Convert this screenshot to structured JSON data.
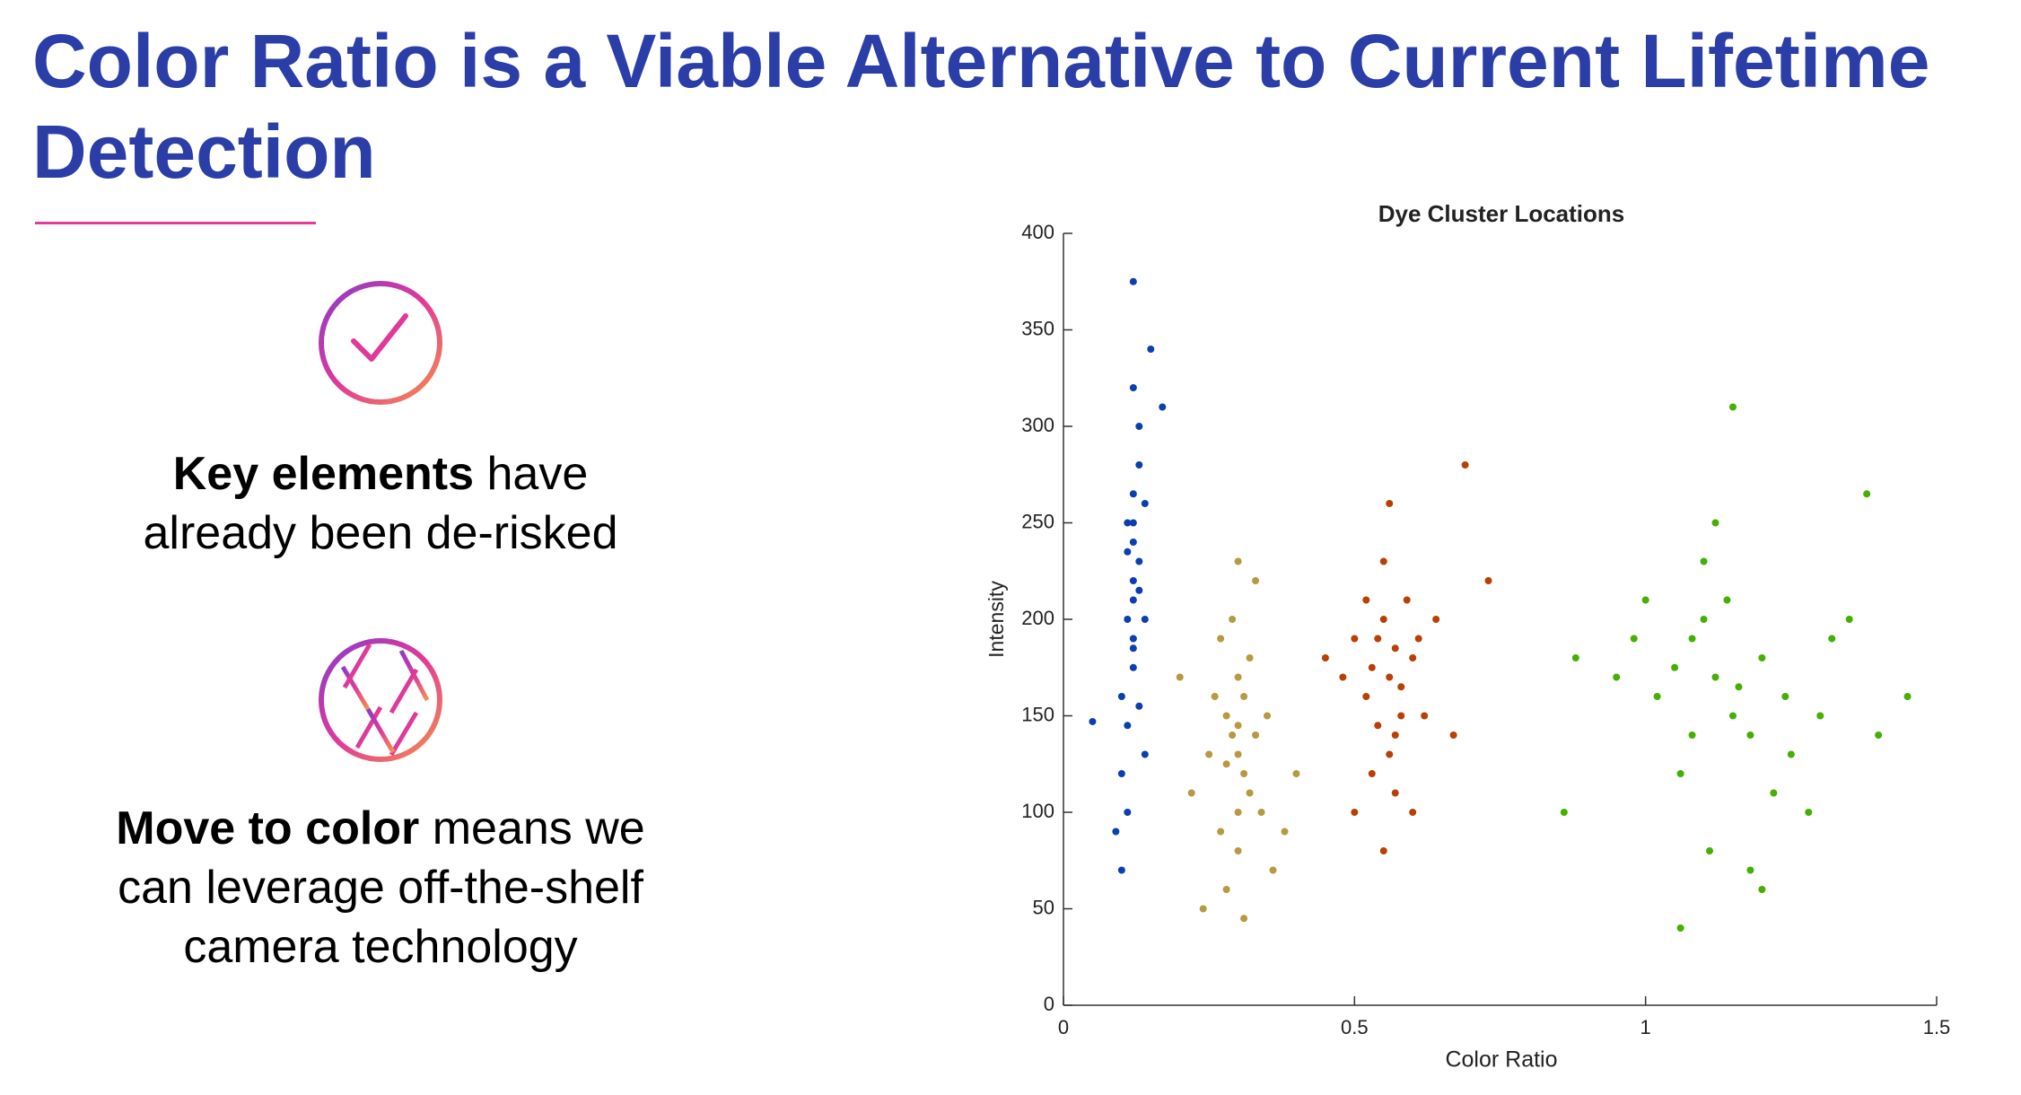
{
  "title": "Color Ratio is a Viable Alternative to Current Lifetime Detection",
  "items": [
    {
      "bold": "Key elements",
      "text": "have already been de-risked"
    },
    {
      "bold": "Move to color",
      "text": "means we can leverage off-the-shelf camera technology"
    }
  ],
  "chart_data": {
    "type": "scatter",
    "title": "Dye Cluster Locations",
    "x_label": "Color Ratio",
    "y_label": "Intensity",
    "xlim": [
      0,
      1.5
    ],
    "xticks": [
      0,
      0.5,
      1,
      1.5
    ],
    "ylim": [
      0,
      400
    ],
    "yticks": [
      0,
      50,
      100,
      150,
      200,
      250,
      300,
      350,
      400
    ],
    "grid": false,
    "series": [
      {
        "color": "#0a3fb0",
        "x": [
          0.12,
          0.11,
          0.13,
          0.12,
          0.1,
          0.13,
          0.12,
          0.11,
          0.14,
          0.12,
          0.1,
          0.13,
          0.12,
          0.11,
          0.12,
          0.09,
          0.13,
          0.12,
          0.11,
          0.14,
          0.05,
          0.17,
          0.15,
          0.12,
          0.1,
          0.13,
          0.12,
          0.11,
          0.14,
          0.12
        ],
        "values": [
          220,
          250,
          280,
          190,
          160,
          300,
          240,
          200,
          260,
          175,
          120,
          215,
          320,
          145,
          375,
          90,
          230,
          265,
          100,
          200,
          147,
          310,
          340,
          185,
          70,
          155,
          210,
          235,
          130,
          250
        ]
      },
      {
        "color": "#b59a40",
        "x": [
          0.3,
          0.28,
          0.32,
          0.3,
          0.27,
          0.33,
          0.29,
          0.31,
          0.26,
          0.34,
          0.3,
          0.25,
          0.35,
          0.28,
          0.32,
          0.3,
          0.22,
          0.38,
          0.24,
          0.36,
          0.29,
          0.31,
          0.3,
          0.27,
          0.33,
          0.2,
          0.4,
          0.31,
          0.28,
          0.3
        ],
        "values": [
          130,
          150,
          110,
          170,
          90,
          140,
          200,
          120,
          160,
          100,
          80,
          130,
          150,
          60,
          180,
          230,
          110,
          90,
          50,
          70,
          140,
          160,
          100,
          190,
          220,
          170,
          120,
          45,
          125,
          145
        ]
      },
      {
        "color": "#b84005",
        "x": [
          0.56,
          0.54,
          0.58,
          0.55,
          0.57,
          0.53,
          0.6,
          0.52,
          0.59,
          0.56,
          0.5,
          0.62,
          0.55,
          0.57,
          0.48,
          0.64,
          0.56,
          0.53,
          0.6,
          0.58,
          0.45,
          0.67,
          0.55,
          0.69,
          0.52,
          0.61,
          0.57,
          0.54,
          0.73,
          0.5
        ],
        "values": [
          170,
          190,
          150,
          200,
          140,
          175,
          180,
          160,
          210,
          130,
          190,
          150,
          230,
          110,
          170,
          200,
          260,
          120,
          100,
          165,
          180,
          140,
          80,
          280,
          210,
          190,
          185,
          145,
          220,
          100
        ]
      },
      {
        "color": "#44b000",
        "x": [
          1.12,
          1.08,
          1.15,
          1.1,
          1.18,
          1.05,
          1.2,
          1.02,
          1.14,
          1.25,
          0.98,
          1.3,
          1.1,
          1.22,
          0.95,
          1.35,
          1.12,
          1.06,
          1.28,
          1.16,
          0.88,
          1.4,
          1.11,
          1.15,
          1.0,
          1.32,
          1.18,
          1.06,
          1.45,
          0.86,
          1.38,
          1.24,
          1.08,
          1.2
        ],
        "values": [
          170,
          190,
          150,
          200,
          140,
          175,
          180,
          160,
          210,
          130,
          190,
          150,
          230,
          110,
          170,
          200,
          250,
          120,
          100,
          165,
          180,
          140,
          80,
          310,
          210,
          190,
          70,
          40,
          160,
          100,
          265,
          160,
          140,
          60
        ]
      }
    ]
  }
}
